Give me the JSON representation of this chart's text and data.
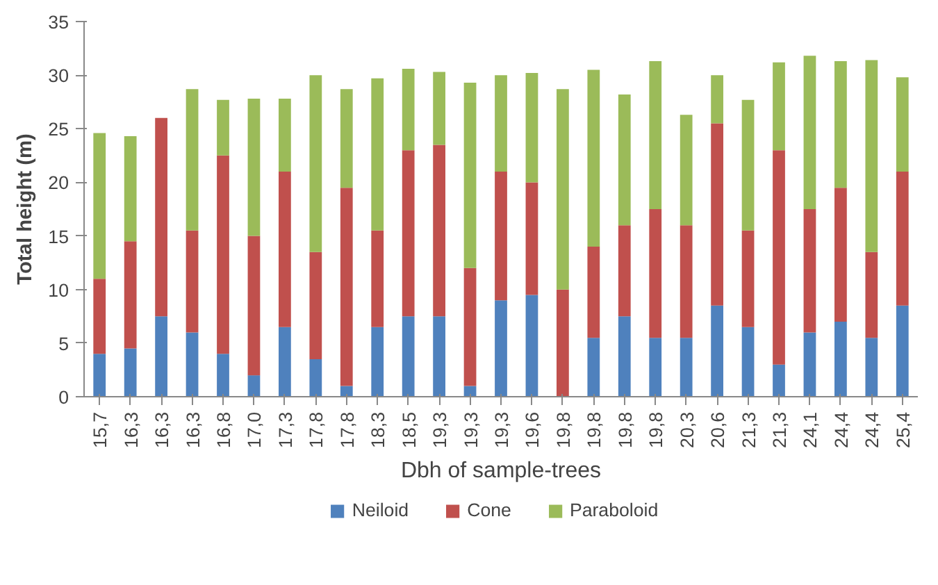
{
  "chart_data": {
    "type": "bar",
    "stacked": true,
    "xlabel": "Dbh of sample-trees",
    "ylabel": "Total height (m)",
    "categories": [
      "15,7",
      "16,3",
      "16,3",
      "16,3",
      "16,8",
      "17,0",
      "17,3",
      "17,8",
      "17,8",
      "18,3",
      "18,5",
      "19,3",
      "19,3",
      "19,3",
      "19,6",
      "19,8",
      "19,8",
      "19,8",
      "19,8",
      "20,3",
      "20,6",
      "21,3",
      "21,3",
      "24,1",
      "24,4",
      "24,4",
      "25,4"
    ],
    "series": [
      {
        "name": "Neiloid",
        "color": "#4f81bd",
        "values": [
          4,
          4.5,
          7.5,
          6,
          4,
          2,
          6.5,
          3.5,
          1,
          6.5,
          7.5,
          7.5,
          1,
          9,
          9.5,
          0,
          5.5,
          7.5,
          5.5,
          5.5,
          8.5,
          6.5,
          3,
          6,
          7,
          5.5,
          8.5
        ]
      },
      {
        "name": "Cone",
        "color": "#c0504d",
        "values": [
          7,
          10,
          18.5,
          9.5,
          18.5,
          13,
          14.5,
          10,
          18.5,
          9,
          15.5,
          16,
          11,
          12,
          10.5,
          10,
          8.5,
          8.5,
          12,
          10.5,
          17,
          9,
          20,
          11.5,
          12.5,
          8,
          12.5
        ]
      },
      {
        "name": "Paraboloid",
        "color": "#9bbb59",
        "values": [
          13.6,
          9.8,
          0,
          13.2,
          5.2,
          12.8,
          6.8,
          16.5,
          9.2,
          14.2,
          7.6,
          6.8,
          17.3,
          9,
          10.2,
          18.7,
          16.5,
          12.2,
          13.8,
          10.3,
          4.5,
          12.2,
          8.2,
          14.3,
          11.8,
          17.9,
          8.8
        ]
      }
    ],
    "ylim": [
      0,
      35
    ],
    "yticks": [
      0,
      5,
      10,
      15,
      20,
      25,
      30,
      35
    ],
    "grid": false,
    "legend": "bottom"
  }
}
